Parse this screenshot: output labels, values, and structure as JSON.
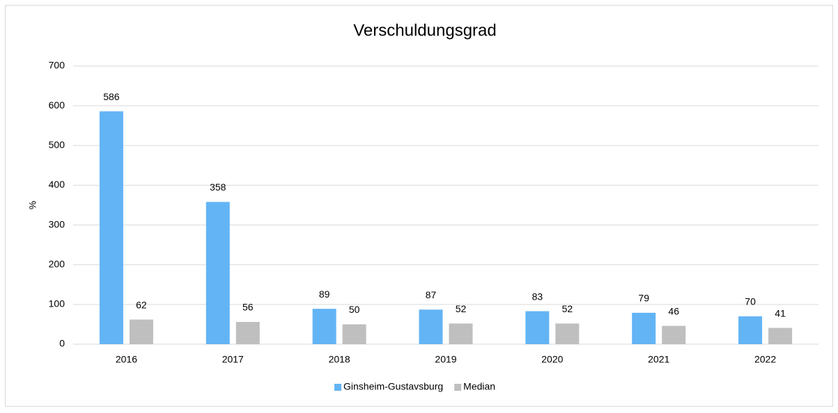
{
  "chart_data": {
    "type": "bar",
    "title": "Verschuldungsgrad",
    "y_label": "%",
    "categories": [
      "2016",
      "2017",
      "2018",
      "2019",
      "2020",
      "2021",
      "2022"
    ],
    "series": [
      {
        "name": "Ginsheim-Gustavsburg",
        "color": "#63b4f5",
        "values": [
          586,
          358,
          89,
          87,
          83,
          79,
          70
        ]
      },
      {
        "name": "Median",
        "color": "#bfbfbf",
        "values": [
          62,
          56,
          50,
          52,
          52,
          46,
          41
        ]
      }
    ],
    "ylim": [
      0,
      700
    ],
    "yticks": [
      0,
      100,
      200,
      300,
      400,
      500,
      600,
      700
    ],
    "grid": true,
    "legend": "bottom"
  }
}
